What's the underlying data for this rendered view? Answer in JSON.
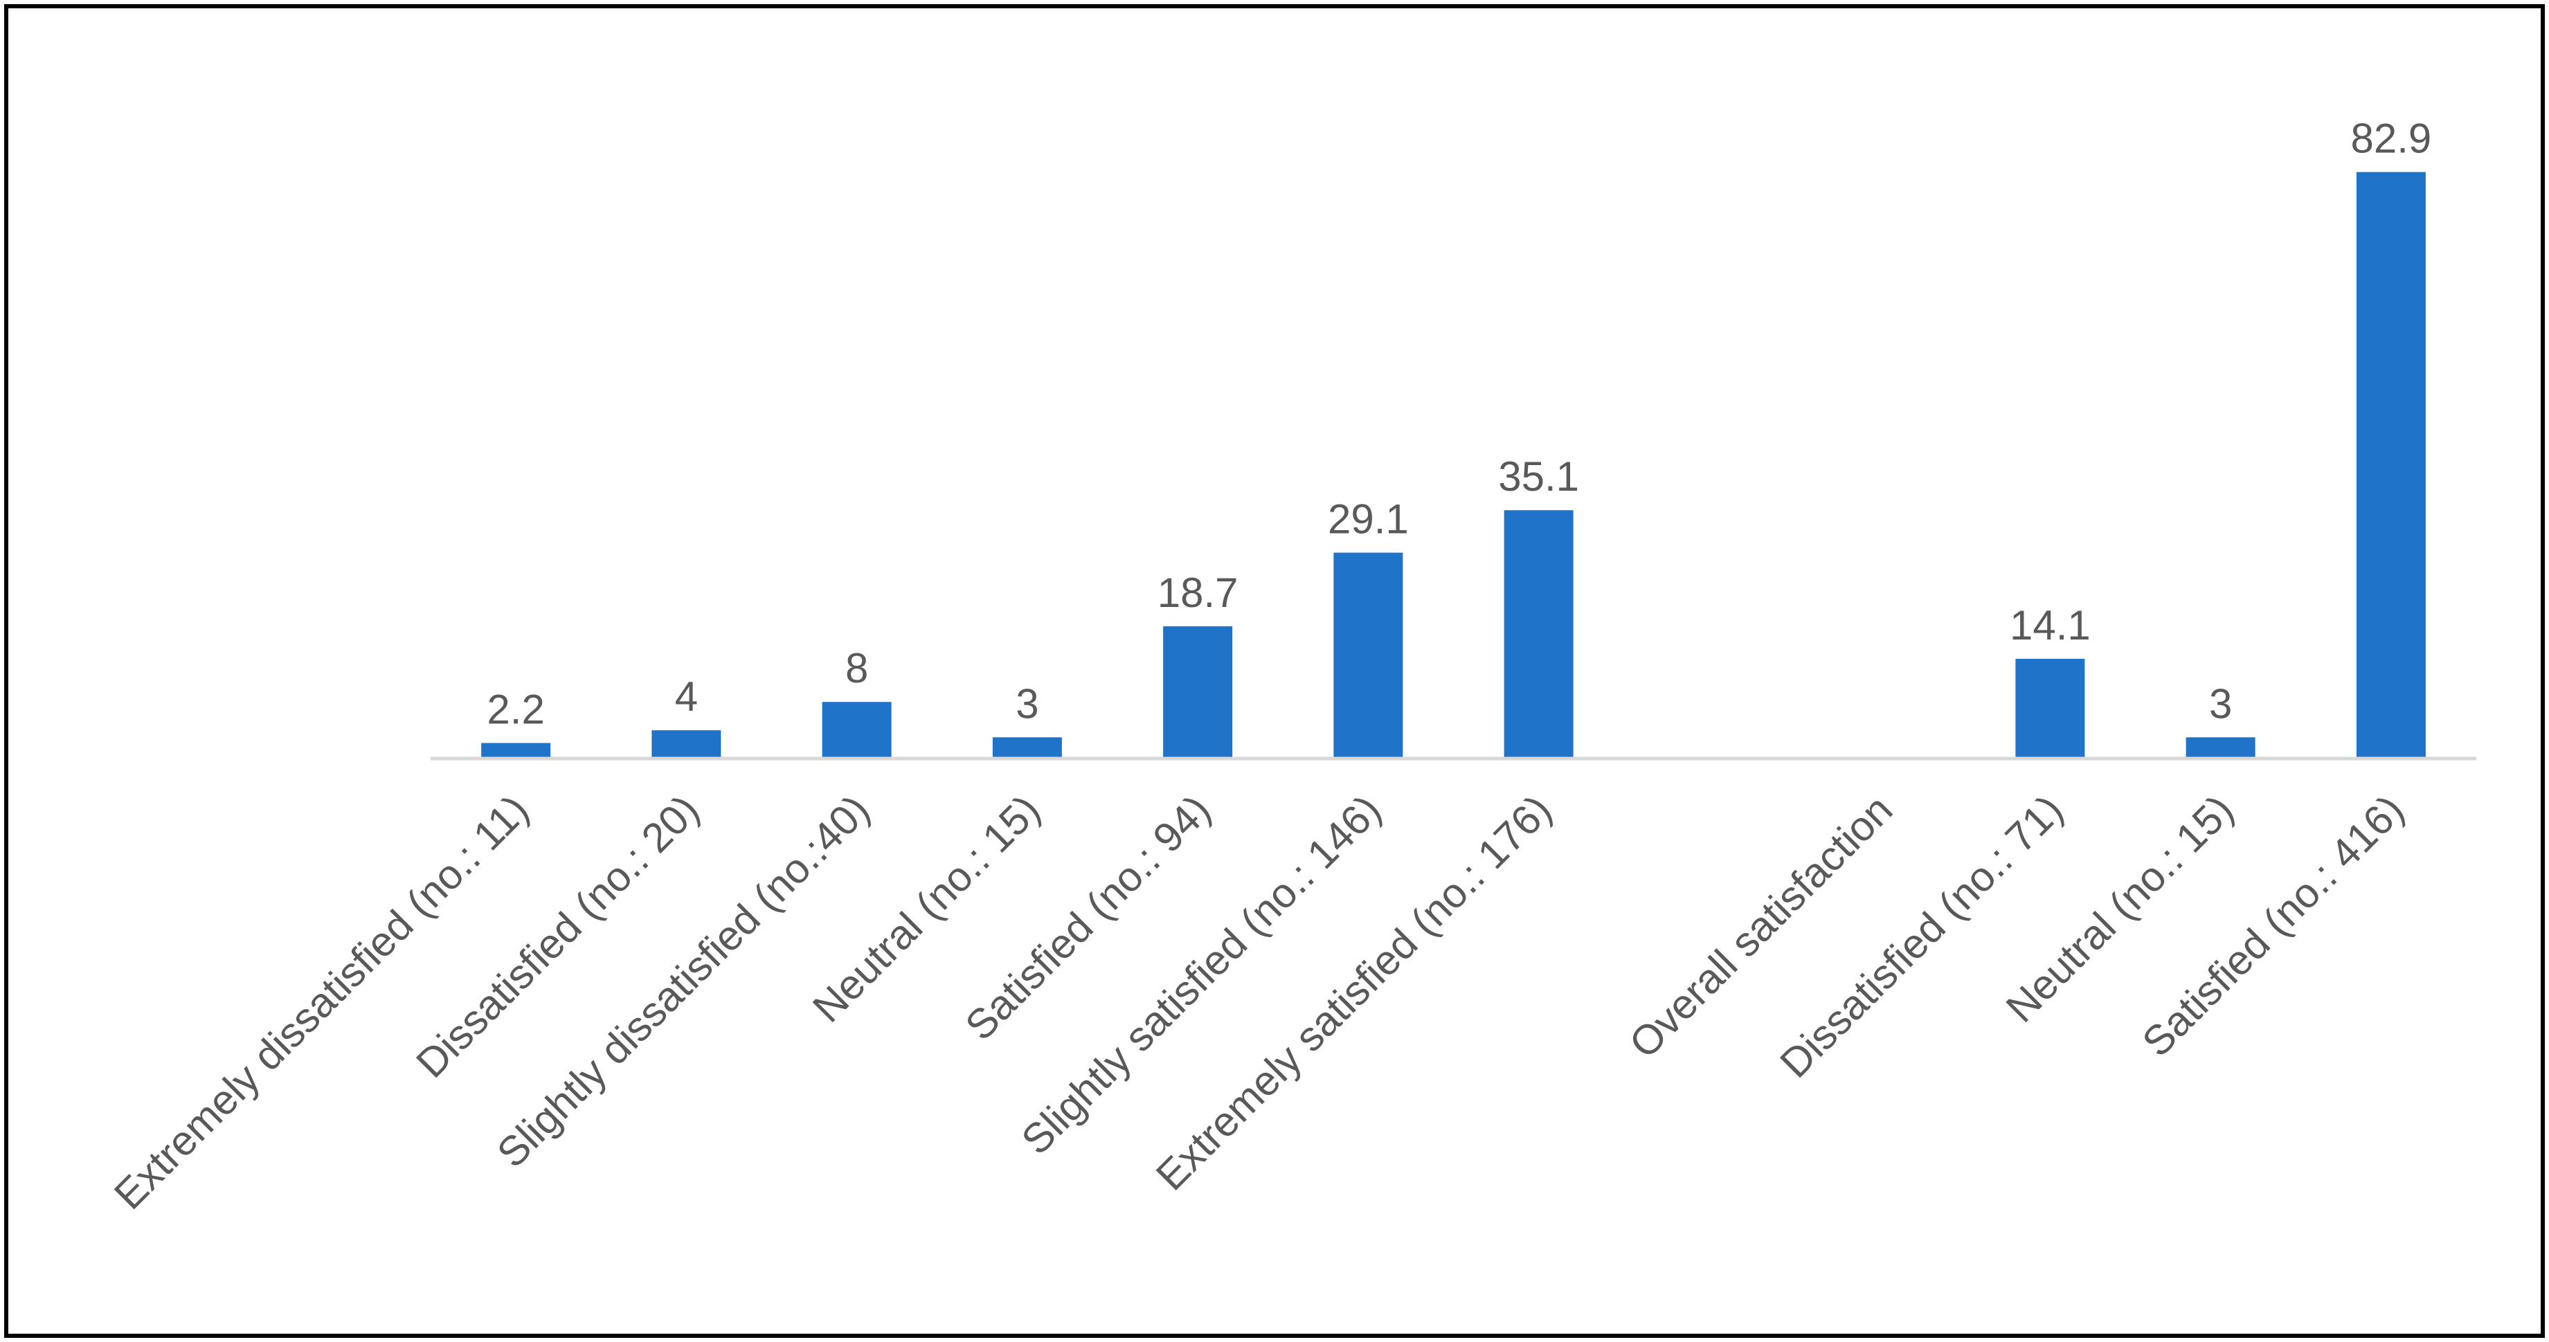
{
  "chart_data": {
    "type": "bar",
    "title": "",
    "xlabel": "",
    "ylabel": "",
    "ylim": [
      0,
      90
    ],
    "grid": false,
    "legend": "none",
    "colors": {
      "bar": "#1F73C9",
      "axis": "#D9D9D9",
      "text": "#595959",
      "frame": "#000000"
    },
    "categories": [
      "Extremely dissatisfied (no.: 11)",
      "Dissatisfied (no.: 20)",
      "Slightly dissatisfied (no.:40)",
      "Neutral (no.: 15)",
      "Satisfied (no.: 94)",
      "Slightly satisfied (no.: 146)",
      "Extremely satisfied (no.: 176)",
      "",
      "Overall satisfaction",
      "Dissatisfied (no.: 71)",
      "Neutral (no.: 15)",
      "Satisfied (no.: 416)"
    ],
    "values": [
      2.2,
      4,
      8,
      3,
      18.7,
      29.1,
      35.1,
      null,
      null,
      14.1,
      3,
      82.9
    ],
    "value_labels": [
      "2.2",
      "4",
      "8",
      "3",
      "18.7",
      "29.1",
      "35.1",
      "",
      "",
      "14.1",
      "3",
      "82.9"
    ]
  }
}
